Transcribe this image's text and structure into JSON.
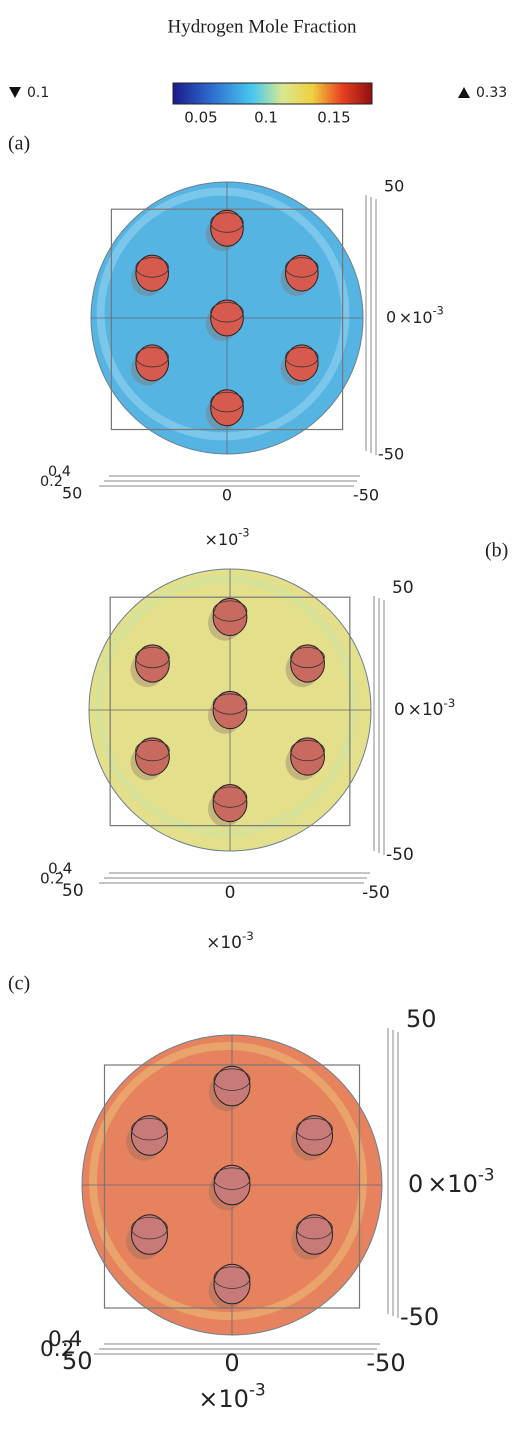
{
  "title": "Hydrogen Mole Fraction",
  "colorbar": {
    "min_label": "0.1",
    "max_label": "0.33",
    "ticks": [
      "0.05",
      "0.1",
      "0.15"
    ]
  },
  "panels": [
    {
      "label": "(a)",
      "y_ticks": [
        "50",
        "0",
        "-50"
      ],
      "x_ticks": [
        "50",
        "0",
        "-50"
      ],
      "z_ticks": [
        "0.4",
        "0.2"
      ],
      "multiplier": "×10",
      "exponent": "-3"
    },
    {
      "label": "(b)",
      "y_ticks": [
        "50",
        "0",
        "-50"
      ],
      "x_ticks": [
        "50",
        "0",
        "-50"
      ],
      "z_ticks": [
        "0.4",
        "0.2"
      ],
      "multiplier": "×10",
      "exponent": "-3"
    },
    {
      "label": "(c)",
      "y_ticks": [
        "50",
        "0",
        "-50"
      ],
      "x_ticks": [
        "50",
        "0",
        "-50"
      ],
      "z_ticks": [
        "0.4",
        "0.2"
      ],
      "multiplier": "×10",
      "exponent": "-3"
    }
  ]
}
